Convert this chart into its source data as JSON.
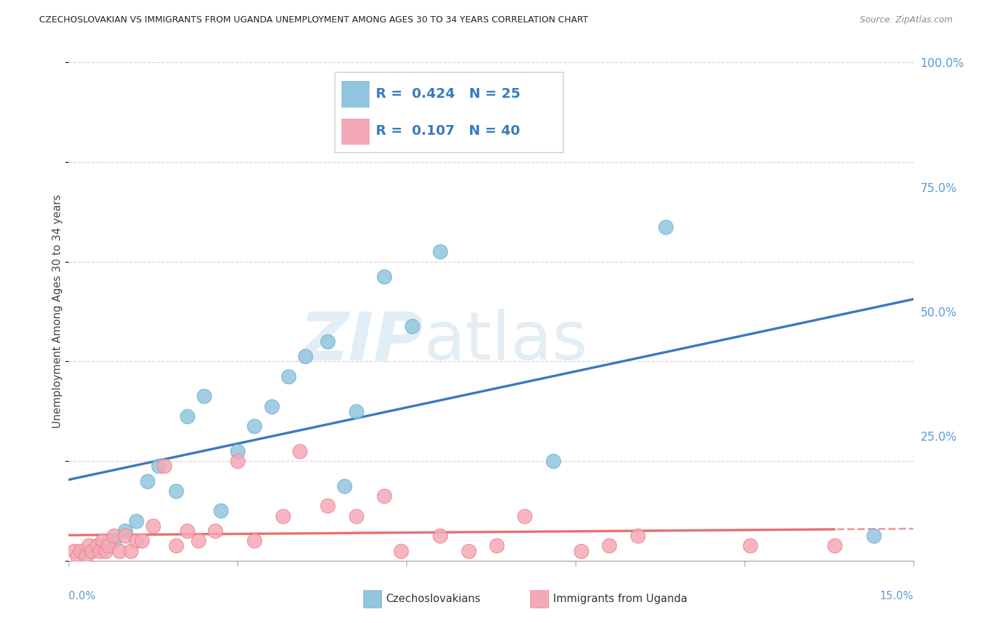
{
  "title": "CZECHOSLOVAKIAN VS IMMIGRANTS FROM UGANDA UNEMPLOYMENT AMONG AGES 30 TO 34 YEARS CORRELATION CHART",
  "source": "Source: ZipAtlas.com",
  "ylabel": "Unemployment Among Ages 30 to 34 years",
  "xlim": [
    0.0,
    15.0
  ],
  "ylim": [
    0.0,
    100.0
  ],
  "yticks": [
    0,
    25,
    50,
    75,
    100
  ],
  "ytick_labels": [
    "",
    "25.0%",
    "50.0%",
    "75.0%",
    "100.0%"
  ],
  "xtick_positions": [
    0,
    3,
    6,
    9,
    12,
    15
  ],
  "bg_color": "#ffffff",
  "grid_color": "#cccccc",
  "blue_color": "#92c5de",
  "pink_color": "#f4a9b8",
  "blue_edge_color": "#6baed6",
  "pink_edge_color": "#f08080",
  "blue_line_color": "#3a7abf",
  "pink_line_color": "#e87070",
  "right_axis_color": "#5b9bd5",
  "blue_R": 0.424,
  "blue_N": 25,
  "pink_R": 0.107,
  "pink_N": 40,
  "blue_scatter_x": [
    0.4,
    0.6,
    0.8,
    1.0,
    1.2,
    1.4,
    1.6,
    1.9,
    2.1,
    2.4,
    2.7,
    3.0,
    3.3,
    3.6,
    3.9,
    4.2,
    4.6,
    4.9,
    5.1,
    5.6,
    6.1,
    6.6,
    8.6,
    10.6,
    14.3
  ],
  "blue_scatter_y": [
    2,
    3,
    4,
    6,
    8,
    16,
    19,
    14,
    29,
    33,
    10,
    22,
    27,
    31,
    37,
    41,
    44,
    15,
    30,
    57,
    47,
    62,
    20,
    67,
    5
  ],
  "pink_scatter_x": [
    0.1,
    0.15,
    0.2,
    0.3,
    0.35,
    0.4,
    0.5,
    0.55,
    0.6,
    0.65,
    0.7,
    0.8,
    0.9,
    1.0,
    1.1,
    1.2,
    1.3,
    1.5,
    1.7,
    1.9,
    2.1,
    2.3,
    2.6,
    3.0,
    3.3,
    3.8,
    4.1,
    4.6,
    5.1,
    5.6,
    5.9,
    6.6,
    7.1,
    7.6,
    8.1,
    9.1,
    9.6,
    10.1,
    12.1,
    13.6
  ],
  "pink_scatter_y": [
    2,
    1,
    2,
    1,
    3,
    2,
    3,
    2,
    4,
    2,
    3,
    5,
    2,
    5,
    2,
    4,
    4,
    7,
    19,
    3,
    6,
    4,
    6,
    20,
    4,
    9,
    22,
    11,
    9,
    13,
    2,
    5,
    2,
    3,
    9,
    2,
    3,
    5,
    3,
    3
  ],
  "legend_label_blue": "Czechoslovakians",
  "legend_label_pink": "Immigrants from Uganda"
}
